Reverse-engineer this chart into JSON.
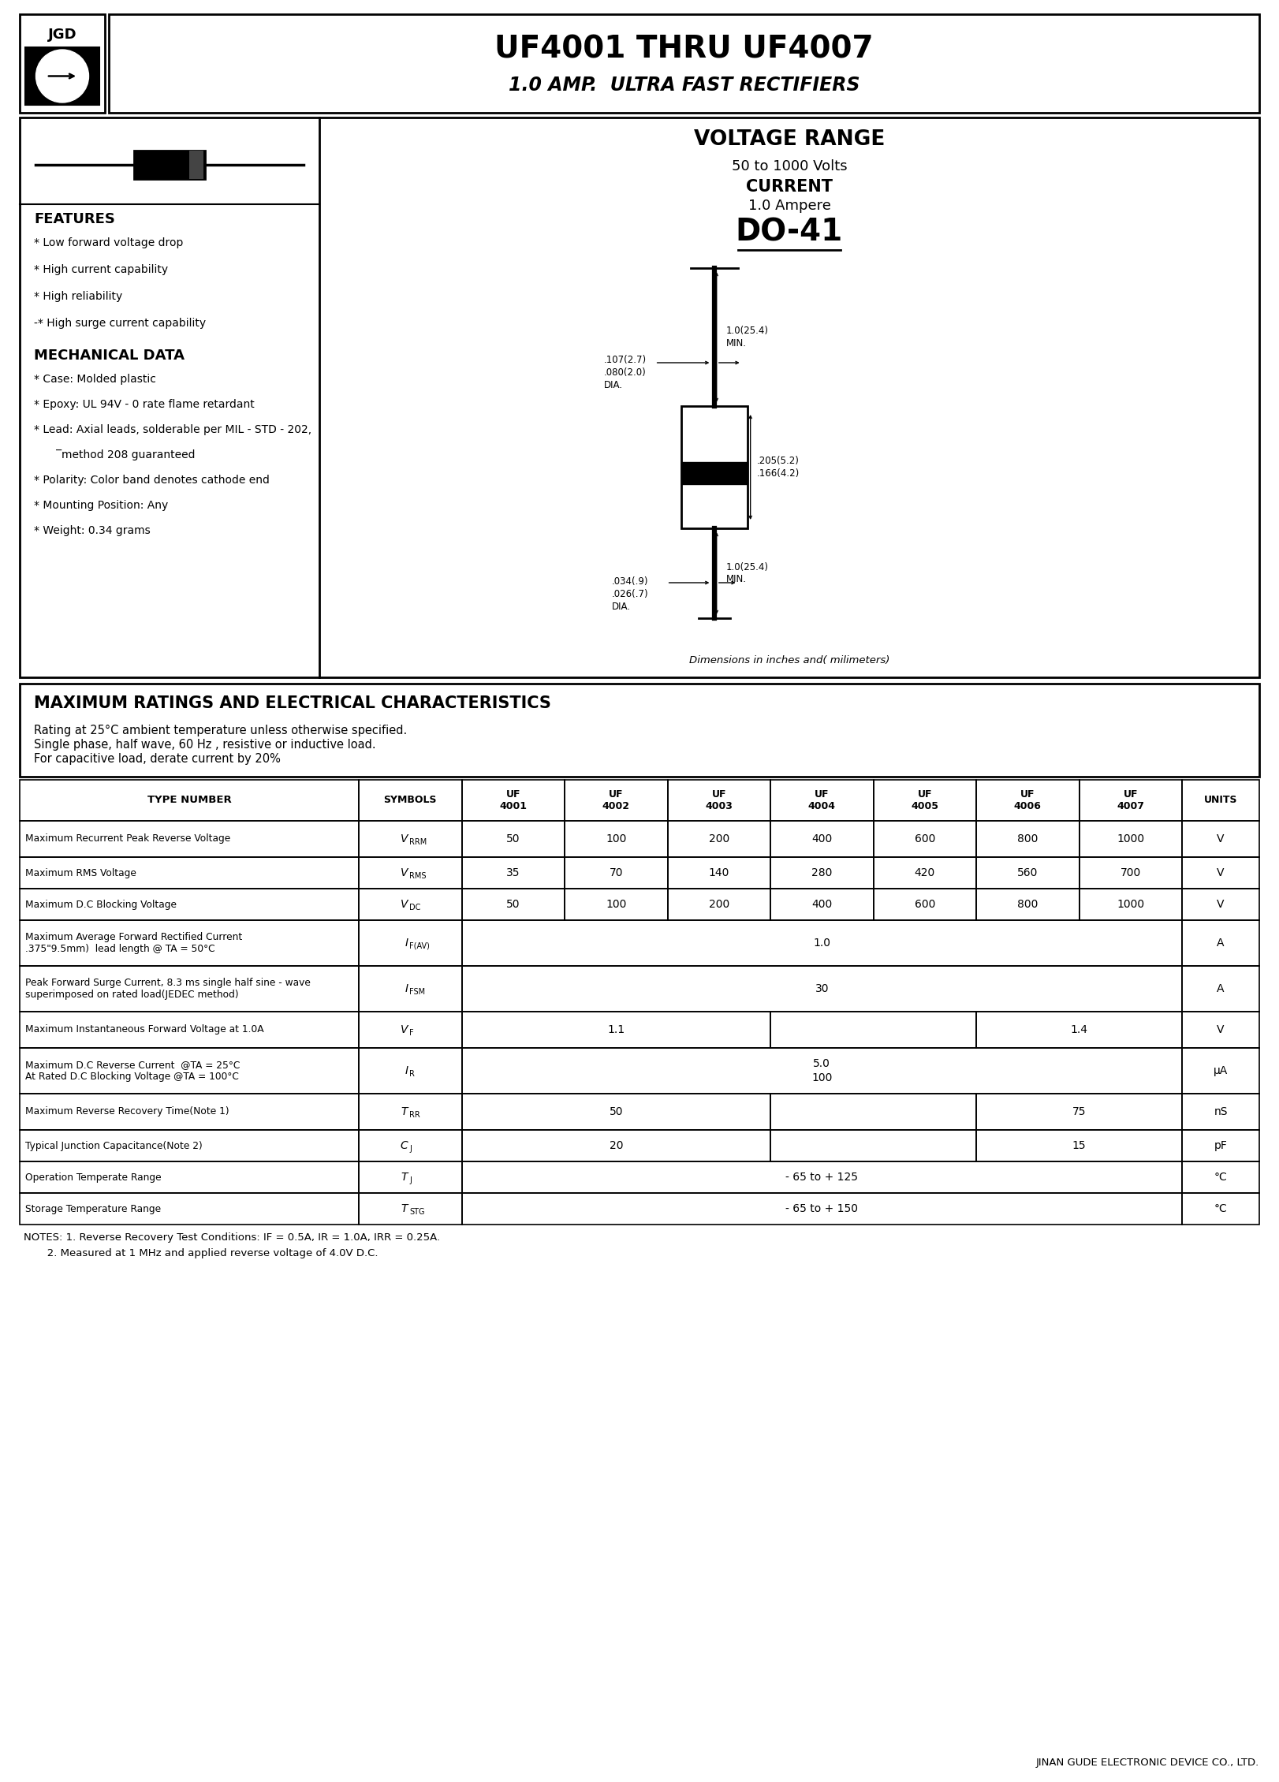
{
  "title_main": "UF4001 THRU UF4007",
  "title_sub": "1.0 AMP.  ULTRA FAST RECTIFIERS",
  "company": "JGD",
  "voltage_range_title": "VOLTAGE RANGE",
  "voltage_range_val": "50 to 1000 Volts",
  "current_title": "CURRENT",
  "current_val": "1.0 Ampere",
  "package": "DO-41",
  "dim_note": "Dimensions in inches and( milimeters)",
  "features_title": "FEATURES",
  "features": [
    "* Low forward voltage drop",
    "* High current capability",
    "* High reliability",
    "-* High surge current capability"
  ],
  "mech_title": "MECHANICAL DATA",
  "mech_data": [
    "* Case: Molded plastic",
    "* Epoxy: UL 94V - 0 rate flame retardant",
    "* Lead: Axial leads, solderable per MIL - STD - 202,",
    "        ̅method 208 guaranteed",
    "* Polarity: Color band denotes cathode end",
    "* Mounting Position: Any",
    "* Weight: 0.34 grams"
  ],
  "max_ratings_title": "MAXIMUM RATINGS AND ELECTRICAL CHARACTERISTICS",
  "max_ratings_sub1": "Rating at 25°C ambient temperature unless otherwise specified.",
  "max_ratings_sub2": "Single phase, half wave, 60 Hz , resistive or inductive load.",
  "max_ratings_sub3": "For capacitive load, derate current by 20%",
  "notes": [
    "NOTES: 1. Reverse Recovery Test Conditions: IF = 0.5A, IR = 1.0A, IRR = 0.25A.",
    "       2. Measured at 1 MHz and applied reverse voltage of 4.0V D.C."
  ],
  "footer": "JINAN GUDE ELECTRONIC DEVICE CO., LTD.",
  "bg_color": "#ffffff"
}
